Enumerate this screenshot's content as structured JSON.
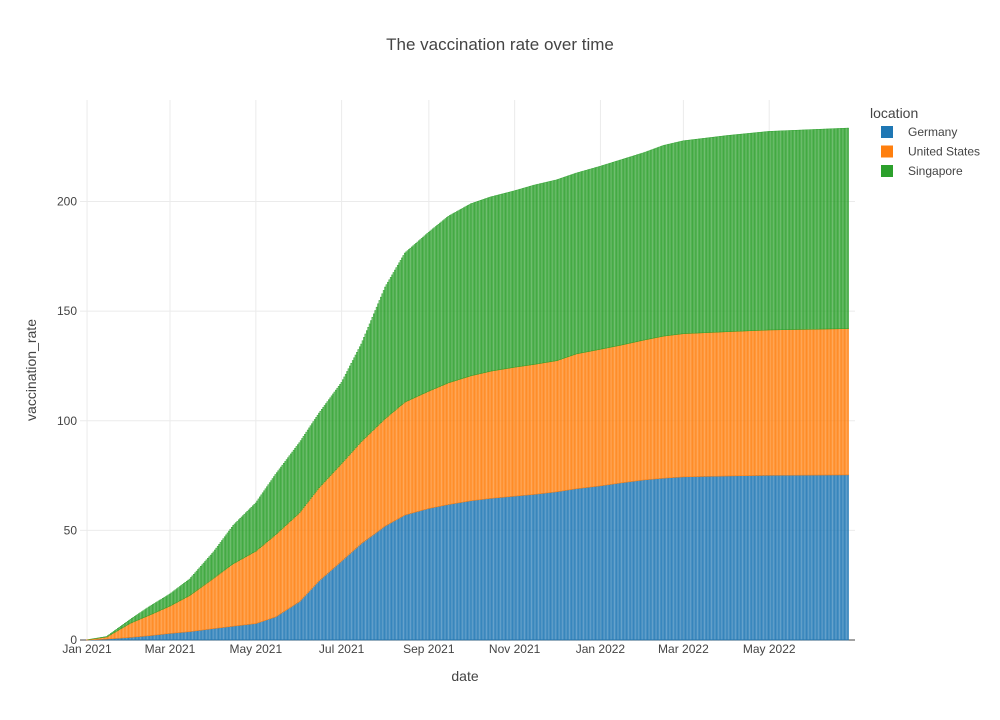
{
  "chart_data": {
    "type": "bar",
    "barmode": "stack",
    "title": "The vaccination rate over time",
    "xlabel": "date",
    "ylabel": "vaccination_rate",
    "x_range": [
      "2020-12-27",
      "2022-07-01"
    ],
    "ylim": [
      0,
      246.3
    ],
    "x_ticks": [
      "Jan 2021",
      "Mar 2021",
      "May 2021",
      "Jul 2021",
      "Sep 2021",
      "Nov 2021",
      "Jan 2022",
      "Mar 2022",
      "May 2022"
    ],
    "y_ticks": [
      "0",
      "50",
      "100",
      "150",
      "200"
    ],
    "y_tick_values": [
      0,
      50,
      100,
      150,
      200
    ],
    "grid": true,
    "legend": {
      "title": "location",
      "position": "right"
    },
    "date_start": "2021-01-01",
    "date_end": "2022-06-26",
    "series": [
      {
        "name": "Germany",
        "color": "#1f77b4",
        "values_by_date": [
          [
            "2021-01-01",
            0
          ],
          [
            "2021-01-15",
            0.4
          ],
          [
            "2021-02-01",
            1.2
          ],
          [
            "2021-02-15",
            2.0
          ],
          [
            "2021-03-01",
            3.0
          ],
          [
            "2021-03-15",
            3.8
          ],
          [
            "2021-04-01",
            5.2
          ],
          [
            "2021-04-15",
            6.3
          ],
          [
            "2021-05-01",
            7.5
          ],
          [
            "2021-05-15",
            10.5
          ],
          [
            "2021-06-01",
            17.5
          ],
          [
            "2021-06-15",
            27.0
          ],
          [
            "2021-07-01",
            36.0
          ],
          [
            "2021-07-15",
            44.0
          ],
          [
            "2021-08-01",
            52.0
          ],
          [
            "2021-08-15",
            57.0
          ],
          [
            "2021-09-01",
            60.0
          ],
          [
            "2021-09-15",
            61.8
          ],
          [
            "2021-10-01",
            63.5
          ],
          [
            "2021-10-15",
            64.6
          ],
          [
            "2021-11-01",
            65.6
          ],
          [
            "2021-11-15",
            66.4
          ],
          [
            "2021-12-01",
            67.6
          ],
          [
            "2021-12-15",
            69.0
          ],
          [
            "2022-01-01",
            70.3
          ],
          [
            "2022-01-15",
            71.6
          ],
          [
            "2022-02-01",
            73.0
          ],
          [
            "2022-02-15",
            73.8
          ],
          [
            "2022-03-01",
            74.4
          ],
          [
            "2022-04-01",
            74.8
          ],
          [
            "2022-05-01",
            75.1
          ],
          [
            "2022-06-26",
            75.3
          ]
        ]
      },
      {
        "name": "United States",
        "color": "#ff7f0e",
        "values_by_date": [
          [
            "2021-01-01",
            0.1
          ],
          [
            "2021-01-15",
            1.0
          ],
          [
            "2021-02-01",
            6.5
          ],
          [
            "2021-02-15",
            9.5
          ],
          [
            "2021-03-01",
            12.5
          ],
          [
            "2021-03-15",
            16.5
          ],
          [
            "2021-04-01",
            23.0
          ],
          [
            "2021-04-15",
            28.5
          ],
          [
            "2021-05-01",
            33.0
          ],
          [
            "2021-05-15",
            37.5
          ],
          [
            "2021-06-01",
            40.5
          ],
          [
            "2021-06-15",
            42.5
          ],
          [
            "2021-07-01",
            44.5
          ],
          [
            "2021-07-15",
            46.5
          ],
          [
            "2021-08-01",
            49.0
          ],
          [
            "2021-08-15",
            51.5
          ],
          [
            "2021-09-01",
            53.5
          ],
          [
            "2021-09-15",
            55.5
          ],
          [
            "2021-10-01",
            57.0
          ],
          [
            "2021-10-15",
            58.0
          ],
          [
            "2021-11-01",
            58.8
          ],
          [
            "2021-11-15",
            59.3
          ],
          [
            "2021-12-01",
            59.8
          ],
          [
            "2021-12-15",
            61.5
          ],
          [
            "2022-01-01",
            62.3
          ],
          [
            "2022-01-15",
            62.8
          ],
          [
            "2022-02-01",
            63.8
          ],
          [
            "2022-02-15",
            64.8
          ],
          [
            "2022-03-01",
            65.3
          ],
          [
            "2022-04-01",
            65.8
          ],
          [
            "2022-05-01",
            66.3
          ],
          [
            "2022-06-26",
            66.7
          ]
        ]
      },
      {
        "name": "Singapore",
        "color": "#2ca02c",
        "values_by_date": [
          [
            "2021-01-01",
            0
          ],
          [
            "2021-01-15",
            0.2
          ],
          [
            "2021-02-01",
            1.8
          ],
          [
            "2021-02-15",
            4.0
          ],
          [
            "2021-03-01",
            5.5
          ],
          [
            "2021-03-15",
            7.5
          ],
          [
            "2021-04-01",
            12.0
          ],
          [
            "2021-04-15",
            17.5
          ],
          [
            "2021-05-01",
            22.0
          ],
          [
            "2021-05-15",
            27.5
          ],
          [
            "2021-06-01",
            32.0
          ],
          [
            "2021-06-15",
            34.0
          ],
          [
            "2021-07-01",
            37.0
          ],
          [
            "2021-07-15",
            44.5
          ],
          [
            "2021-08-01",
            60.0
          ],
          [
            "2021-08-15",
            68.0
          ],
          [
            "2021-09-01",
            72.5
          ],
          [
            "2021-09-15",
            76.0
          ],
          [
            "2021-10-01",
            78.5
          ],
          [
            "2021-10-15",
            79.5
          ],
          [
            "2021-11-01",
            80.5
          ],
          [
            "2021-11-15",
            81.8
          ],
          [
            "2021-12-01",
            82.5
          ],
          [
            "2021-12-15",
            82.5
          ],
          [
            "2022-01-01",
            83.5
          ],
          [
            "2022-01-15",
            84.5
          ],
          [
            "2022-02-01",
            85.5
          ],
          [
            "2022-02-15",
            87.0
          ],
          [
            "2022-03-01",
            88.0
          ],
          [
            "2022-04-01",
            89.5
          ],
          [
            "2022-05-01",
            90.6
          ],
          [
            "2022-06-26",
            91.5
          ]
        ]
      }
    ]
  }
}
